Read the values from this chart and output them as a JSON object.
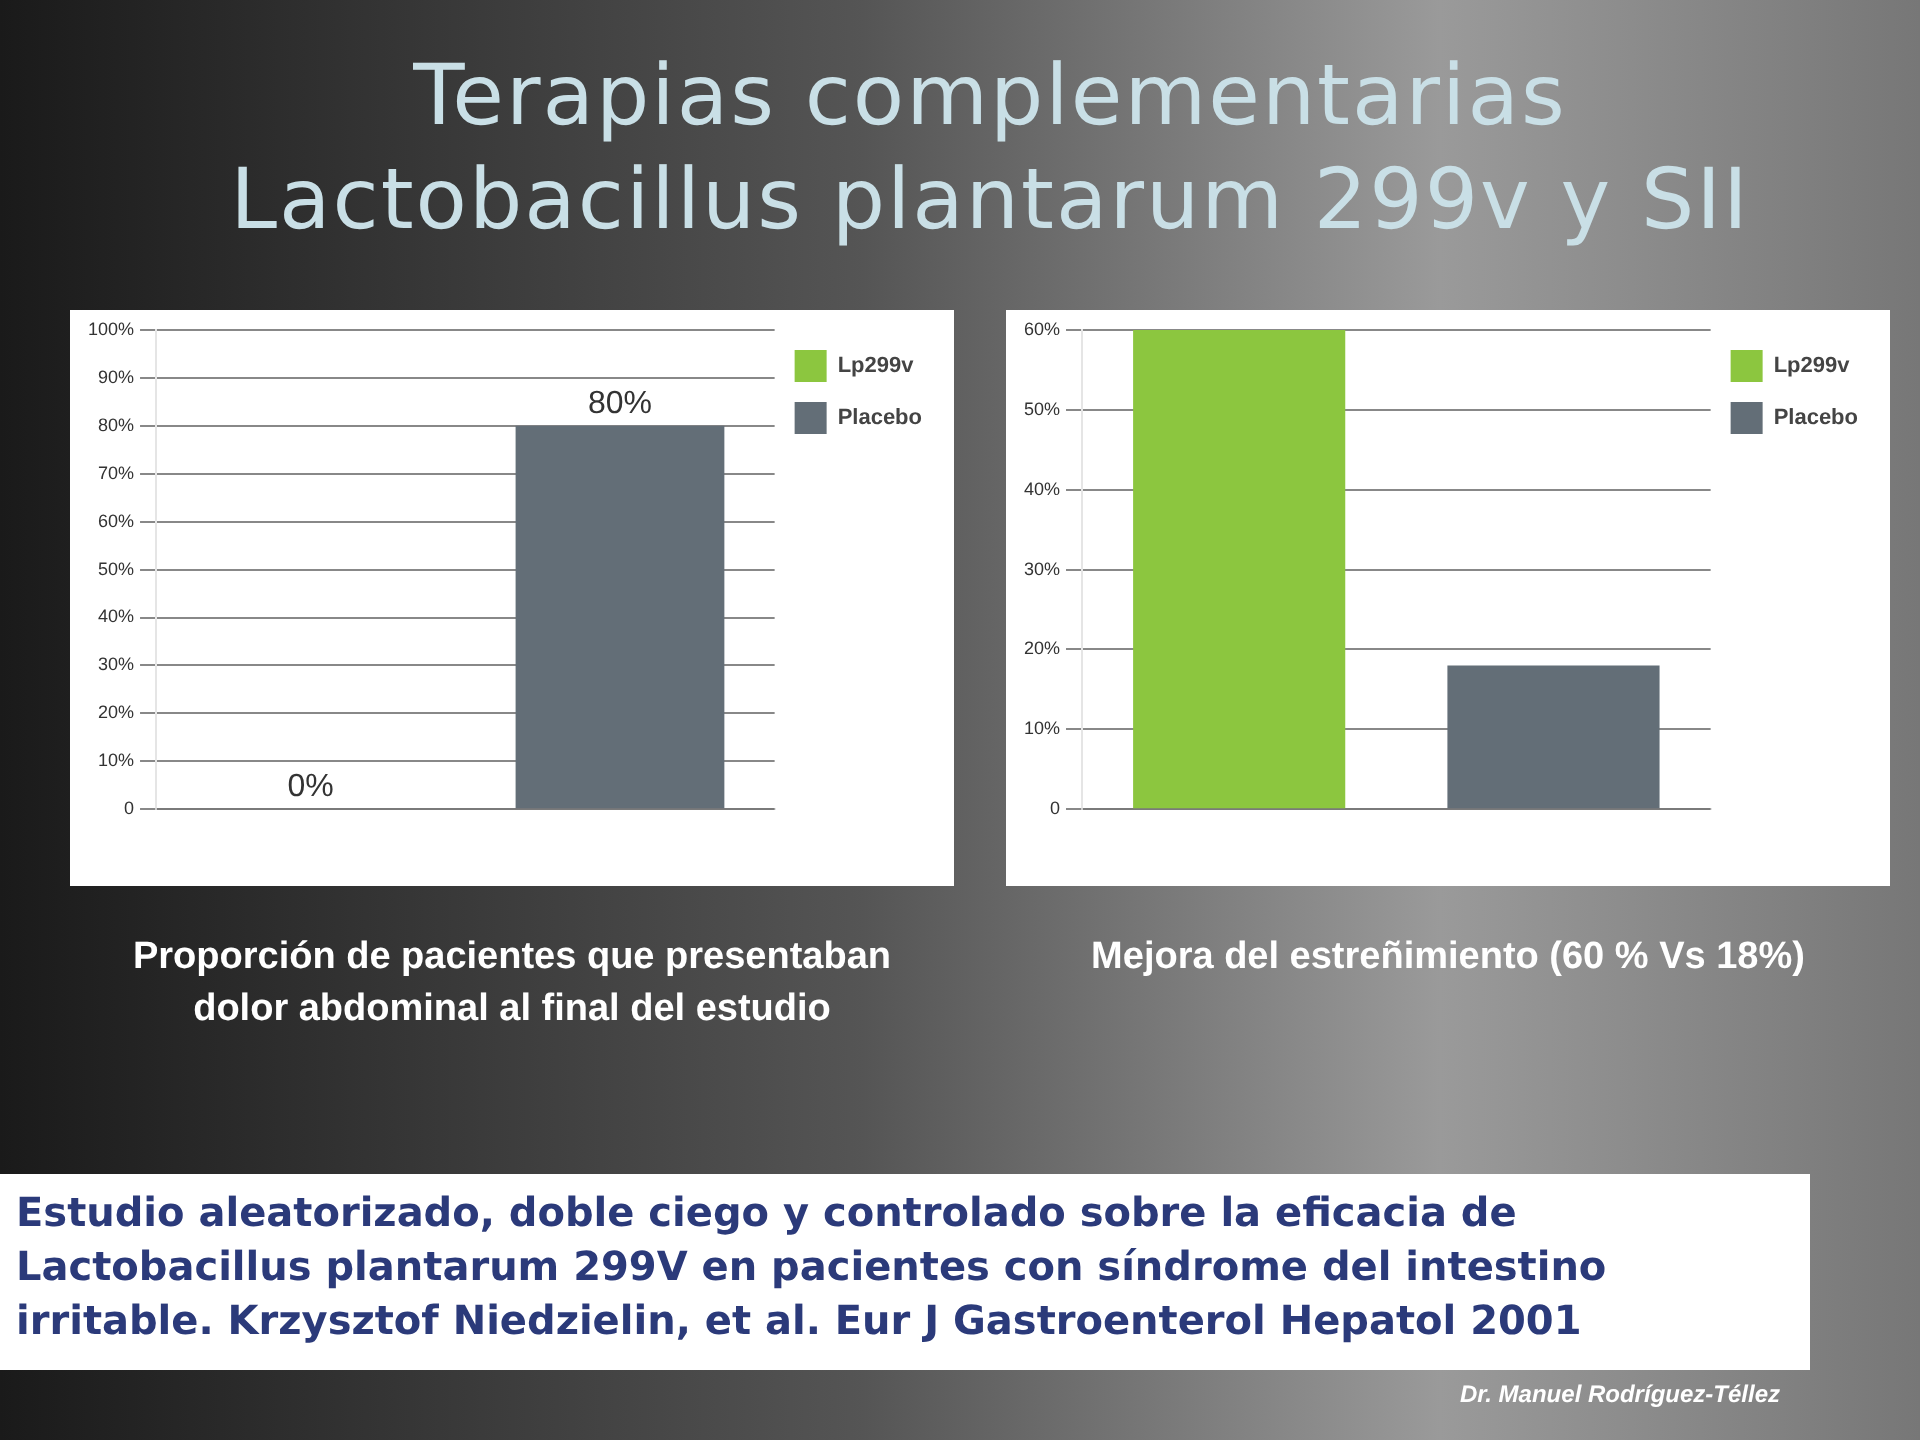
{
  "chart_data": [
    {
      "type": "bar",
      "title": "Terapias complementarias Lactobacillus plantarum 299v y SII",
      "xlabel": "Proporción de pacientes que presentaban dolor abdominal al final del estudio",
      "categories": [
        null,
        null
      ],
      "series": [
        {
          "name": "Lp299v",
          "color": "#8cc63f",
          "values": [
            0,
            null
          ],
          "value_labels": [
            "0%",
            null
          ]
        },
        {
          "name": "Placebo",
          "color": "#636e77",
          "values": [
            null,
            80
          ],
          "value_labels": [
            null,
            "80%"
          ]
        }
      ],
      "ylim": [
        0,
        100
      ],
      "yticks": [
        {
          "value": 0,
          "label": "0"
        },
        {
          "value": 10,
          "label": "10%"
        },
        {
          "value": 20,
          "label": "20%"
        },
        {
          "value": 30,
          "label": "30%"
        },
        {
          "value": 40,
          "label": "40%"
        },
        {
          "value": 50,
          "label": "50%"
        },
        {
          "value": 60,
          "label": "60%"
        },
        {
          "value": 70,
          "label": "70%"
        },
        {
          "value": 80,
          "label": "80%"
        },
        {
          "value": 90,
          "label": "90%"
        },
        {
          "value": 100,
          "label": "100%"
        }
      ],
      "grid": "y",
      "legend": "top right",
      "annotations": [
        "Estudio aleatorizado, doble ciego y controlado sobre la eficacia de Lactobacillus plantarum 299V en pacientes con síndrome del intestino irritable. Krzysztof Niedzielin, et al. Eur J Gastroenterol Hepatol 2001",
        "Dr. Manuel Rodríguez-Téllez"
      ]
    },
    {
      "type": "bar",
      "xlabel": "Mejora del estreñimiento (60 % Vs 18%)",
      "categories": [
        null,
        null
      ],
      "series": [
        {
          "name": "Lp299v",
          "color": "#8cc63f",
          "values": [
            60,
            null
          ]
        },
        {
          "name": "Placebo",
          "color": "#636e77",
          "values": [
            null,
            18
          ]
        }
      ],
      "ylim": [
        0,
        60
      ],
      "yticks": [
        {
          "value": 0,
          "label": "0"
        },
        {
          "value": 10,
          "label": "10%"
        },
        {
          "value": 20,
          "label": "20%"
        },
        {
          "value": 30,
          "label": "30%"
        },
        {
          "value": 40,
          "label": "40%"
        },
        {
          "value": 50,
          "label": "50%"
        },
        {
          "value": 60,
          "label": "60%"
        }
      ],
      "grid": "y",
      "legend": "top right"
    }
  ]
}
